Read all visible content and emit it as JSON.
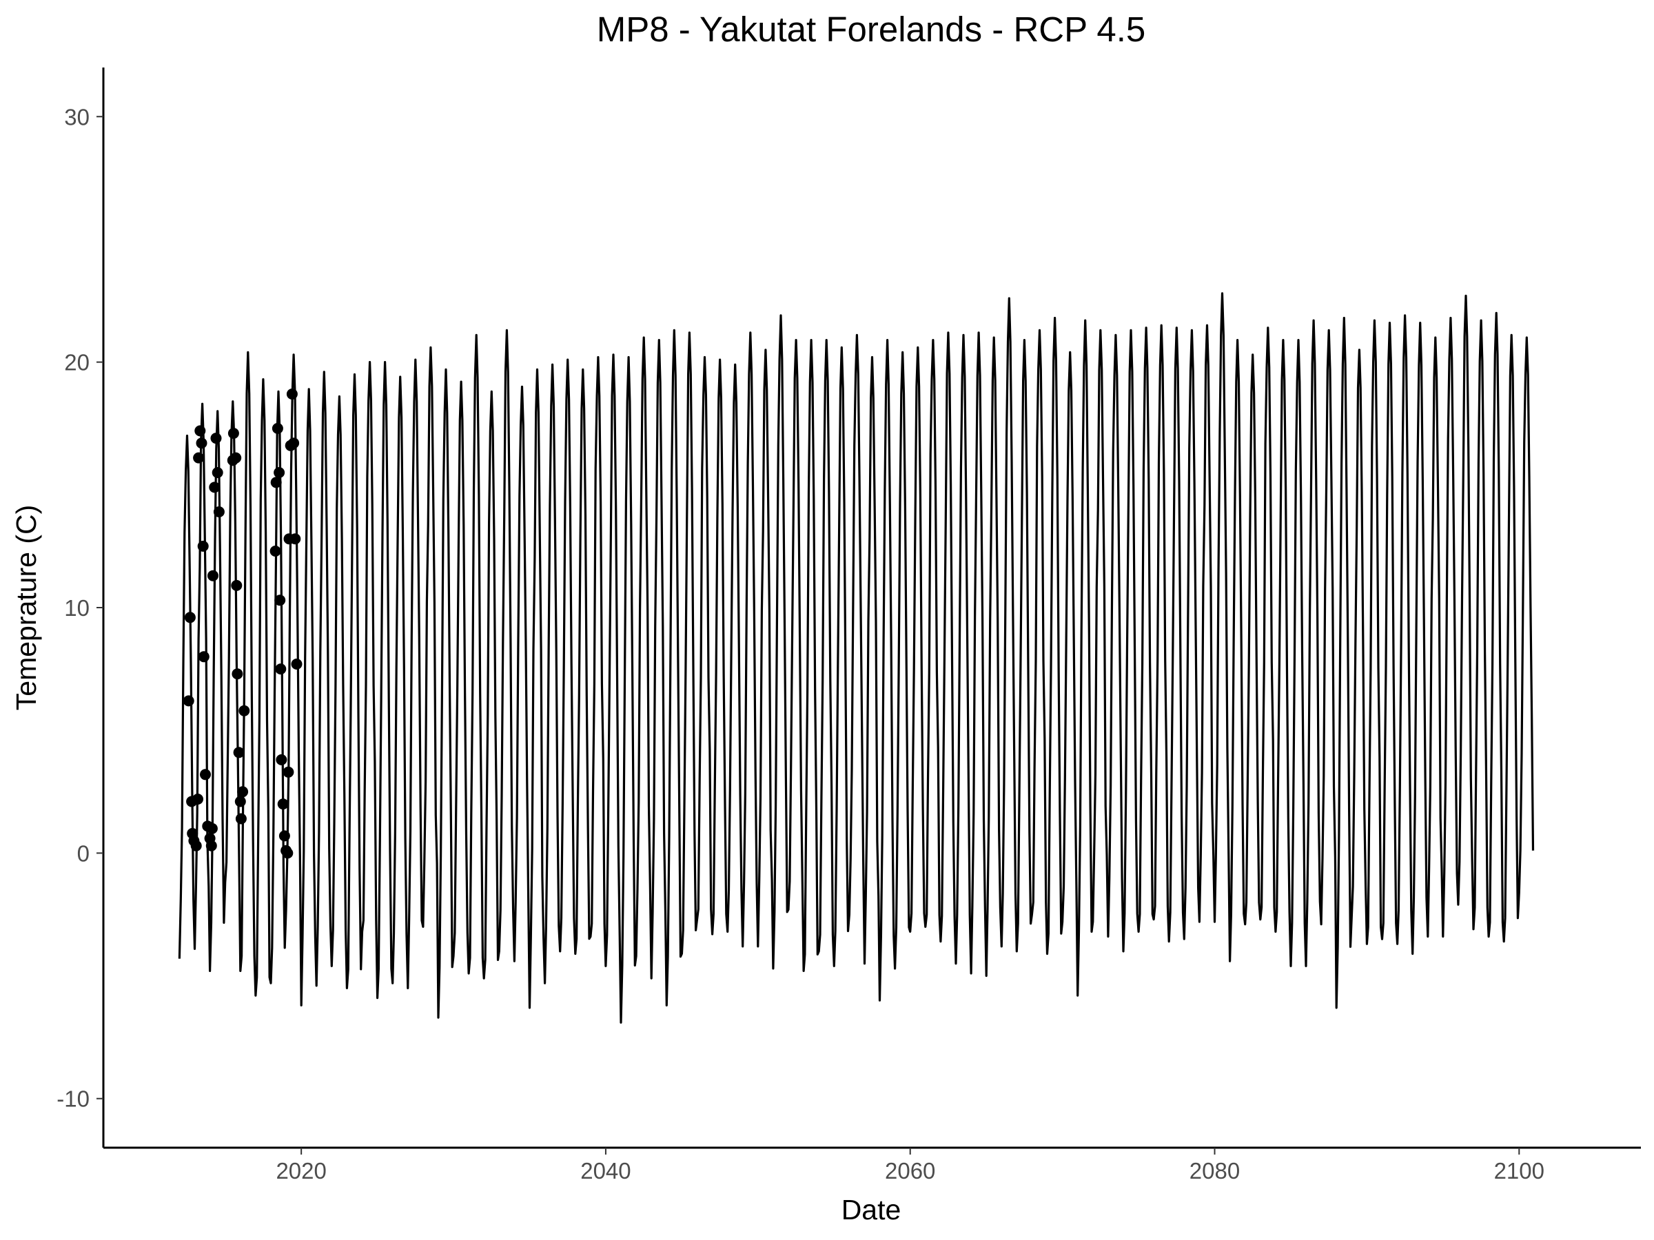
{
  "chart_data": {
    "type": "line",
    "title": "MP8 - Yakutat Forelands - RCP 4.5",
    "xlabel": "Date",
    "ylabel": "Temeprature (C)",
    "xlim": [
      2007.0,
      2108.0
    ],
    "ylim": [
      -12.0,
      32.0
    ],
    "grid": false,
    "legend": "none",
    "x_ticks": [
      2020,
      2040,
      2060,
      2080,
      2100
    ],
    "x_tick_labels": [
      "2020",
      "2040",
      "2060",
      "2080",
      "2100"
    ],
    "y_ticks": [
      -10,
      0,
      10,
      20,
      30
    ],
    "y_tick_labels": [
      "-10",
      "0",
      "10",
      "20",
      "30"
    ],
    "line_color": "#000000",
    "series": [
      {
        "type": "line",
        "description_of_x": "monthly time steps 2012.0 to 2100.9",
        "annual_summer_peaks": [
          {
            "year": 2012,
            "value": 17.0
          },
          {
            "year": 2013,
            "value": 18.3
          },
          {
            "year": 2014,
            "value": 18.0
          },
          {
            "year": 2015,
            "value": 18.4
          },
          {
            "year": 2016,
            "value": 20.4
          },
          {
            "year": 2017,
            "value": 19.3
          },
          {
            "year": 2018,
            "value": 18.8
          },
          {
            "year": 2019,
            "value": 20.3
          },
          {
            "year": 2020,
            "value": 18.9
          },
          {
            "year": 2021,
            "value": 19.6
          },
          {
            "year": 2022,
            "value": 18.6
          },
          {
            "year": 2023,
            "value": 19.5
          },
          {
            "year": 2024,
            "value": 20.0
          },
          {
            "year": 2025,
            "value": 20.0
          },
          {
            "year": 2026,
            "value": 19.4
          },
          {
            "year": 2027,
            "value": 20.1
          },
          {
            "year": 2028,
            "value": 20.6
          },
          {
            "year": 2029,
            "value": 19.7
          },
          {
            "year": 2030,
            "value": 19.2
          },
          {
            "year": 2031,
            "value": 21.1
          },
          {
            "year": 2032,
            "value": 18.8
          },
          {
            "year": 2033,
            "value": 21.3
          },
          {
            "year": 2034,
            "value": 19.0
          },
          {
            "year": 2035,
            "value": 19.7
          },
          {
            "year": 2036,
            "value": 19.9
          },
          {
            "year": 2037,
            "value": 20.1
          },
          {
            "year": 2038,
            "value": 19.7
          },
          {
            "year": 2039,
            "value": 20.2
          },
          {
            "year": 2040,
            "value": 20.3
          },
          {
            "year": 2041,
            "value": 20.2
          },
          {
            "year": 2042,
            "value": 21.0
          },
          {
            "year": 2043,
            "value": 20.9
          },
          {
            "year": 2044,
            "value": 21.3
          },
          {
            "year": 2045,
            "value": 21.2
          },
          {
            "year": 2046,
            "value": 20.2
          },
          {
            "year": 2047,
            "value": 20.1
          },
          {
            "year": 2048,
            "value": 19.9
          },
          {
            "year": 2049,
            "value": 21.2
          },
          {
            "year": 2050,
            "value": 20.5
          },
          {
            "year": 2051,
            "value": 21.9
          },
          {
            "year": 2052,
            "value": 20.9
          },
          {
            "year": 2053,
            "value": 20.9
          },
          {
            "year": 2054,
            "value": 20.9
          },
          {
            "year": 2055,
            "value": 20.6
          },
          {
            "year": 2056,
            "value": 21.1
          },
          {
            "year": 2057,
            "value": 20.2
          },
          {
            "year": 2058,
            "value": 20.9
          },
          {
            "year": 2059,
            "value": 20.4
          },
          {
            "year": 2060,
            "value": 20.6
          },
          {
            "year": 2061,
            "value": 20.9
          },
          {
            "year": 2062,
            "value": 21.2
          },
          {
            "year": 2063,
            "value": 21.1
          },
          {
            "year": 2064,
            "value": 21.2
          },
          {
            "year": 2065,
            "value": 21.0
          },
          {
            "year": 2066,
            "value": 22.6
          },
          {
            "year": 2067,
            "value": 20.9
          },
          {
            "year": 2068,
            "value": 21.3
          },
          {
            "year": 2069,
            "value": 21.8
          },
          {
            "year": 2070,
            "value": 20.4
          },
          {
            "year": 2071,
            "value": 21.7
          },
          {
            "year": 2072,
            "value": 21.3
          },
          {
            "year": 2073,
            "value": 21.1
          },
          {
            "year": 2074,
            "value": 21.3
          },
          {
            "year": 2075,
            "value": 21.4
          },
          {
            "year": 2076,
            "value": 21.5
          },
          {
            "year": 2077,
            "value": 21.4
          },
          {
            "year": 2078,
            "value": 21.3
          },
          {
            "year": 2079,
            "value": 21.5
          },
          {
            "year": 2080,
            "value": 22.8
          },
          {
            "year": 2081,
            "value": 20.9
          },
          {
            "year": 2082,
            "value": 20.3
          },
          {
            "year": 2083,
            "value": 21.4
          },
          {
            "year": 2084,
            "value": 20.9
          },
          {
            "year": 2085,
            "value": 20.9
          },
          {
            "year": 2086,
            "value": 21.7
          },
          {
            "year": 2087,
            "value": 21.3
          },
          {
            "year": 2088,
            "value": 21.8
          },
          {
            "year": 2089,
            "value": 20.5
          },
          {
            "year": 2090,
            "value": 21.7
          },
          {
            "year": 2091,
            "value": 21.6
          },
          {
            "year": 2092,
            "value": 21.9
          },
          {
            "year": 2093,
            "value": 21.6
          },
          {
            "year": 2094,
            "value": 21.0
          },
          {
            "year": 2095,
            "value": 21.8
          },
          {
            "year": 2096,
            "value": 22.7
          },
          {
            "year": 2097,
            "value": 21.7
          },
          {
            "year": 2098,
            "value": 22.0
          },
          {
            "year": 2099,
            "value": 21.1
          },
          {
            "year": 2100,
            "value": 21.0
          }
        ],
        "annual_winter_minima": [
          {
            "year": 2012,
            "value": -4.3
          },
          {
            "year": 2013,
            "value": -3.9
          },
          {
            "year": 2014,
            "value": -4.8
          },
          {
            "year": 2015,
            "value": -1.2
          },
          {
            "year": 2016,
            "value": -4.8
          },
          {
            "year": 2017,
            "value": -5.8
          },
          {
            "year": 2018,
            "value": -5.3
          },
          {
            "year": 2019,
            "value": -2.3
          },
          {
            "year": 2020,
            "value": -6.2
          },
          {
            "year": 2021,
            "value": -5.4
          },
          {
            "year": 2022,
            "value": -4.6
          },
          {
            "year": 2023,
            "value": -5.5
          },
          {
            "year": 2024,
            "value": -3.2
          },
          {
            "year": 2025,
            "value": -5.9
          },
          {
            "year": 2026,
            "value": -5.3
          },
          {
            "year": 2027,
            "value": -5.5
          },
          {
            "year": 2028,
            "value": -3.0
          },
          {
            "year": 2029,
            "value": -6.7
          },
          {
            "year": 2030,
            "value": -4.2
          },
          {
            "year": 2031,
            "value": -4.9
          },
          {
            "year": 2032,
            "value": -5.1
          },
          {
            "year": 2033,
            "value": -4.0
          },
          {
            "year": 2034,
            "value": -4.4
          },
          {
            "year": 2035,
            "value": -6.3
          },
          {
            "year": 2036,
            "value": -5.3
          },
          {
            "year": 2037,
            "value": -4.0
          },
          {
            "year": 2038,
            "value": -4.1
          },
          {
            "year": 2039,
            "value": -3.4
          },
          {
            "year": 2040,
            "value": -4.6
          },
          {
            "year": 2041,
            "value": -6.9
          },
          {
            "year": 2042,
            "value": -4.2
          },
          {
            "year": 2043,
            "value": -5.1
          },
          {
            "year": 2044,
            "value": -6.2
          },
          {
            "year": 2045,
            "value": -4.1
          },
          {
            "year": 2046,
            "value": -2.7
          },
          {
            "year": 2047,
            "value": -3.3
          },
          {
            "year": 2048,
            "value": -3.2
          },
          {
            "year": 2049,
            "value": -3.8
          },
          {
            "year": 2050,
            "value": -3.8
          },
          {
            "year": 2051,
            "value": -4.7
          },
          {
            "year": 2052,
            "value": -2.3
          },
          {
            "year": 2053,
            "value": -4.8
          },
          {
            "year": 2054,
            "value": -4.0
          },
          {
            "year": 2055,
            "value": -4.6
          },
          {
            "year": 2056,
            "value": -2.5
          },
          {
            "year": 2057,
            "value": -4.5
          },
          {
            "year": 2058,
            "value": -6.0
          },
          {
            "year": 2059,
            "value": -4.7
          },
          {
            "year": 2060,
            "value": -3.2
          },
          {
            "year": 2061,
            "value": -3.0
          },
          {
            "year": 2062,
            "value": -3.6
          },
          {
            "year": 2063,
            "value": -4.5
          },
          {
            "year": 2064,
            "value": -4.9
          },
          {
            "year": 2065,
            "value": -5.0
          },
          {
            "year": 2066,
            "value": -3.8
          },
          {
            "year": 2067,
            "value": -4.0
          },
          {
            "year": 2068,
            "value": -2.5
          },
          {
            "year": 2069,
            "value": -4.1
          },
          {
            "year": 2070,
            "value": -2.8
          },
          {
            "year": 2071,
            "value": -5.8
          },
          {
            "year": 2072,
            "value": -2.8
          },
          {
            "year": 2073,
            "value": -3.4
          },
          {
            "year": 2074,
            "value": -4.0
          },
          {
            "year": 2075,
            "value": -3.2
          },
          {
            "year": 2076,
            "value": -2.7
          },
          {
            "year": 2077,
            "value": -3.6
          },
          {
            "year": 2078,
            "value": -3.5
          },
          {
            "year": 2079,
            "value": -2.8
          },
          {
            "year": 2080,
            "value": -2.8
          },
          {
            "year": 2081,
            "value": -4.4
          },
          {
            "year": 2082,
            "value": -2.9
          },
          {
            "year": 2083,
            "value": -2.7
          },
          {
            "year": 2084,
            "value": -3.2
          },
          {
            "year": 2085,
            "value": -4.6
          },
          {
            "year": 2086,
            "value": -4.6
          },
          {
            "year": 2087,
            "value": -2.9
          },
          {
            "year": 2088,
            "value": -6.3
          },
          {
            "year": 2089,
            "value": -2.6
          },
          {
            "year": 2090,
            "value": -3.7
          },
          {
            "year": 2091,
            "value": -3.5
          },
          {
            "year": 2092,
            "value": -3.7
          },
          {
            "year": 2093,
            "value": -4.1
          },
          {
            "year": 2094,
            "value": -3.4
          },
          {
            "year": 2095,
            "value": -3.4
          },
          {
            "year": 2096,
            "value": -2.1
          },
          {
            "year": 2097,
            "value": -3.1
          },
          {
            "year": 2098,
            "value": -3.4
          },
          {
            "year": 2099,
            "value": -3.6
          },
          {
            "year": 2100,
            "value": -1.6
          }
        ]
      },
      {
        "type": "scatter",
        "description_of_x": "observed monthly points",
        "points": [
          {
            "x": 2012.6,
            "y": 6.2
          },
          {
            "x": 2012.7,
            "y": 9.6
          },
          {
            "x": 2012.8,
            "y": 2.1
          },
          {
            "x": 2012.85,
            "y": 0.8
          },
          {
            "x": 2012.95,
            "y": 0.5
          },
          {
            "x": 2013.1,
            "y": 0.3
          },
          {
            "x": 2013.2,
            "y": 2.2
          },
          {
            "x": 2013.25,
            "y": 16.1
          },
          {
            "x": 2013.35,
            "y": 17.2
          },
          {
            "x": 2013.45,
            "y": 16.7
          },
          {
            "x": 2013.55,
            "y": 12.5
          },
          {
            "x": 2013.6,
            "y": 8.0
          },
          {
            "x": 2013.7,
            "y": 3.2
          },
          {
            "x": 2013.85,
            "y": 1.1
          },
          {
            "x": 2014.0,
            "y": 0.6
          },
          {
            "x": 2014.1,
            "y": 0.3
          },
          {
            "x": 2014.15,
            "y": 1.0
          },
          {
            "x": 2014.2,
            "y": 11.3
          },
          {
            "x": 2014.3,
            "y": 14.9
          },
          {
            "x": 2014.4,
            "y": 16.9
          },
          {
            "x": 2014.5,
            "y": 15.5
          },
          {
            "x": 2014.6,
            "y": 13.9
          },
          {
            "x": 2015.5,
            "y": 16.0
          },
          {
            "x": 2015.55,
            "y": 17.1
          },
          {
            "x": 2015.7,
            "y": 16.1
          },
          {
            "x": 2015.75,
            "y": 10.9
          },
          {
            "x": 2015.8,
            "y": 7.3
          },
          {
            "x": 2015.9,
            "y": 4.1
          },
          {
            "x": 2016.0,
            "y": 2.1
          },
          {
            "x": 2016.05,
            "y": 1.4
          },
          {
            "x": 2016.15,
            "y": 2.5
          },
          {
            "x": 2016.25,
            "y": 5.8
          },
          {
            "x": 2018.3,
            "y": 12.3
          },
          {
            "x": 2018.35,
            "y": 15.1
          },
          {
            "x": 2018.45,
            "y": 17.3
          },
          {
            "x": 2018.55,
            "y": 15.5
          },
          {
            "x": 2018.6,
            "y": 10.3
          },
          {
            "x": 2018.65,
            "y": 7.5
          },
          {
            "x": 2018.7,
            "y": 3.8
          },
          {
            "x": 2018.8,
            "y": 2.0
          },
          {
            "x": 2018.9,
            "y": 0.7
          },
          {
            "x": 2019.0,
            "y": 0.1
          },
          {
            "x": 2019.1,
            "y": -0.0
          },
          {
            "x": 2019.15,
            "y": 3.3
          },
          {
            "x": 2019.2,
            "y": 12.8
          },
          {
            "x": 2019.3,
            "y": 16.6
          },
          {
            "x": 2019.4,
            "y": 18.7
          },
          {
            "x": 2019.5,
            "y": 16.7
          },
          {
            "x": 2019.6,
            "y": 12.8
          },
          {
            "x": 2019.7,
            "y": 7.7
          }
        ]
      }
    ]
  }
}
